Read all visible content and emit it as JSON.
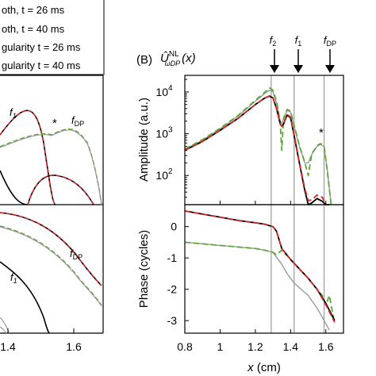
{
  "legend": {
    "items": [
      {
        "text": "oth, t = 26 ms",
        "color": "#000000",
        "dash": "solid"
      },
      {
        "text": "oth, t = 40 ms",
        "color": "#d62728",
        "dash": "dashed"
      },
      {
        "text": "gularity  t = 26 ms",
        "color": "#9a9a9a",
        "dash": "solid"
      },
      {
        "text": "gularity  t = 40 ms",
        "color": "#5aa832",
        "dash": "dashed"
      }
    ]
  },
  "colors": {
    "black": "#000000",
    "red": "#d62728",
    "gray": "#9a9a9a",
    "green": "#5aa832"
  },
  "left_panel": {
    "top_labels": {
      "f1": "f",
      "f1_sub": "1",
      "fdp": "f",
      "fdp_sub": "DP",
      "star": "*"
    },
    "bottom_labels": {
      "fdp": "f",
      "fdp_sub": "DP",
      "f1": "f",
      "f1_sub": "1"
    },
    "x_ticks": [
      "1.4",
      "1.6"
    ]
  },
  "right_panel": {
    "panel_label": "(B)",
    "title_main": "Û",
    "title_sup": "NL",
    "title_sub": "ωDP",
    "title_arg": "(x)",
    "markers": [
      {
        "f": "f",
        "sub": "2",
        "x": 1.29
      },
      {
        "f": "f",
        "sub": "1",
        "x": 1.42
      },
      {
        "f": "f",
        "sub": "DP",
        "x": 1.59
      }
    ],
    "star": "*",
    "xlabel": "x (cm)",
    "xlabel_italic": "x",
    "xlabel_rest": " (cm)",
    "x_ticks": [
      "0.8",
      "1",
      "1.2",
      "1.4",
      "1.6"
    ]
  },
  "chart_data": [
    {
      "type": "line",
      "title": "",
      "xlabel": "x (cm)",
      "ylabel": "Amplitude (a.u.)",
      "xlim": [
        0.8,
        1.7
      ],
      "ylim": [
        20,
        25000
      ],
      "yscale": "log",
      "y_ticks": [
        {
          "value": 100,
          "label": "10",
          "exp": "2"
        },
        {
          "value": 1000,
          "label": "10",
          "exp": "3"
        },
        {
          "value": 10000,
          "label": "10",
          "exp": "4"
        }
      ],
      "series": [
        {
          "color": "black",
          "dash": "solid",
          "x": [
            0.8,
            0.9,
            1.0,
            1.1,
            1.2,
            1.25,
            1.28,
            1.3,
            1.32,
            1.34,
            1.35,
            1.36,
            1.38,
            1.4,
            1.42,
            1.45,
            1.48,
            1.5,
            1.52,
            1.55,
            1.58,
            1.6,
            1.62
          ],
          "y": [
            400,
            650,
            1200,
            2300,
            5000,
            7000,
            8000,
            7200,
            4000,
            1800,
            1500,
            1700,
            2800,
            2400,
            900,
            200,
            45,
            20,
            22,
            28,
            24,
            20,
            20
          ]
        },
        {
          "color": "red",
          "dash": "dashed",
          "x": [
            0.8,
            0.9,
            1.0,
            1.1,
            1.2,
            1.25,
            1.28,
            1.3,
            1.32,
            1.34,
            1.35,
            1.36,
            1.38,
            1.4,
            1.42,
            1.45,
            1.48,
            1.5,
            1.52,
            1.55,
            1.58,
            1.6,
            1.62
          ],
          "y": [
            400,
            650,
            1200,
            2300,
            5000,
            7000,
            8100,
            7300,
            4000,
            1800,
            1500,
            1700,
            2900,
            2500,
            950,
            210,
            50,
            25,
            26,
            34,
            30,
            20,
            20
          ]
        },
        {
          "color": "gray",
          "dash": "solid",
          "x": [
            0.8,
            0.9,
            1.0,
            1.1,
            1.2,
            1.25,
            1.28,
            1.3,
            1.32,
            1.34,
            1.35,
            1.36,
            1.38,
            1.4,
            1.42,
            1.45,
            1.48,
            1.5,
            1.52,
            1.55,
            1.57,
            1.59,
            1.61,
            1.63
          ],
          "y": [
            420,
            700,
            1300,
            2600,
            6000,
            9000,
            11000,
            10000,
            5500,
            2000,
            1800,
            2200,
            3600,
            3300,
            1500,
            500,
            200,
            200,
            320,
            500,
            560,
            480,
            120,
            20
          ]
        },
        {
          "color": "green",
          "dash": "dashed",
          "x": [
            0.8,
            0.9,
            1.0,
            1.1,
            1.2,
            1.25,
            1.28,
            1.3,
            1.32,
            1.34,
            1.35,
            1.36,
            1.38,
            1.4,
            1.42,
            1.45,
            1.48,
            1.5,
            1.52,
            1.55,
            1.57,
            1.59,
            1.61,
            1.63
          ],
          "y": [
            430,
            720,
            1350,
            2700,
            6300,
            9500,
            12500,
            11000,
            6000,
            2100,
            400,
            2300,
            3800,
            3500,
            1600,
            520,
            210,
            100,
            330,
            520,
            580,
            500,
            110,
            20
          ]
        }
      ]
    },
    {
      "type": "line",
      "title": "",
      "xlabel": "x (cm)",
      "ylabel": "Phase (cycles)",
      "xlim": [
        0.8,
        1.7
      ],
      "ylim": [
        -3.4,
        0.7
      ],
      "y_ticks": [
        {
          "value": 0,
          "label": "0"
        },
        {
          "value": -1,
          "label": "-1"
        },
        {
          "value": -2,
          "label": "-2"
        },
        {
          "value": -3,
          "label": "-3"
        }
      ],
      "series": [
        {
          "color": "black",
          "dash": "solid",
          "x": [
            0.8,
            0.9,
            1.0,
            1.1,
            1.2,
            1.25,
            1.3,
            1.32,
            1.35,
            1.4,
            1.45,
            1.5,
            1.55,
            1.6,
            1.65
          ],
          "y": [
            0.5,
            0.4,
            0.3,
            0.2,
            0.12,
            0.08,
            0.0,
            -0.15,
            -0.7,
            -1.05,
            -1.35,
            -1.65,
            -2.0,
            -2.45,
            -3.0
          ]
        },
        {
          "color": "red",
          "dash": "dashed",
          "x": [
            0.8,
            0.9,
            1.0,
            1.1,
            1.2,
            1.25,
            1.3,
            1.32,
            1.35,
            1.4,
            1.45,
            1.5,
            1.55,
            1.6,
            1.65
          ],
          "y": [
            0.5,
            0.4,
            0.3,
            0.2,
            0.12,
            0.08,
            0.0,
            -0.15,
            -0.7,
            -1.05,
            -1.35,
            -1.65,
            -2.0,
            -2.5,
            -3.05
          ]
        },
        {
          "color": "gray",
          "dash": "solid",
          "x": [
            0.8,
            0.9,
            1.0,
            1.1,
            1.2,
            1.25,
            1.3,
            1.35,
            1.38,
            1.42,
            1.45,
            1.5,
            1.55,
            1.6,
            1.62
          ],
          "y": [
            -0.5,
            -0.55,
            -0.6,
            -0.65,
            -0.7,
            -0.75,
            -0.82,
            -1.2,
            -1.5,
            -1.8,
            -1.95,
            -2.2,
            -2.6,
            -3.1,
            -3.3
          ]
        },
        {
          "color": "green",
          "dash": "dashed",
          "x": [
            0.8,
            0.9,
            1.0,
            1.1,
            1.2,
            1.25,
            1.3,
            1.32,
            1.35,
            1.4,
            1.45,
            1.5,
            1.55,
            1.58,
            1.6,
            1.62,
            1.65
          ],
          "y": [
            -0.5,
            -0.55,
            -0.6,
            -0.65,
            -0.7,
            -0.75,
            -0.82,
            -0.9,
            -0.75,
            -1.05,
            -1.35,
            -1.65,
            -2.0,
            -2.2,
            -2.5,
            -2.2,
            -3.1
          ]
        }
      ]
    }
  ]
}
